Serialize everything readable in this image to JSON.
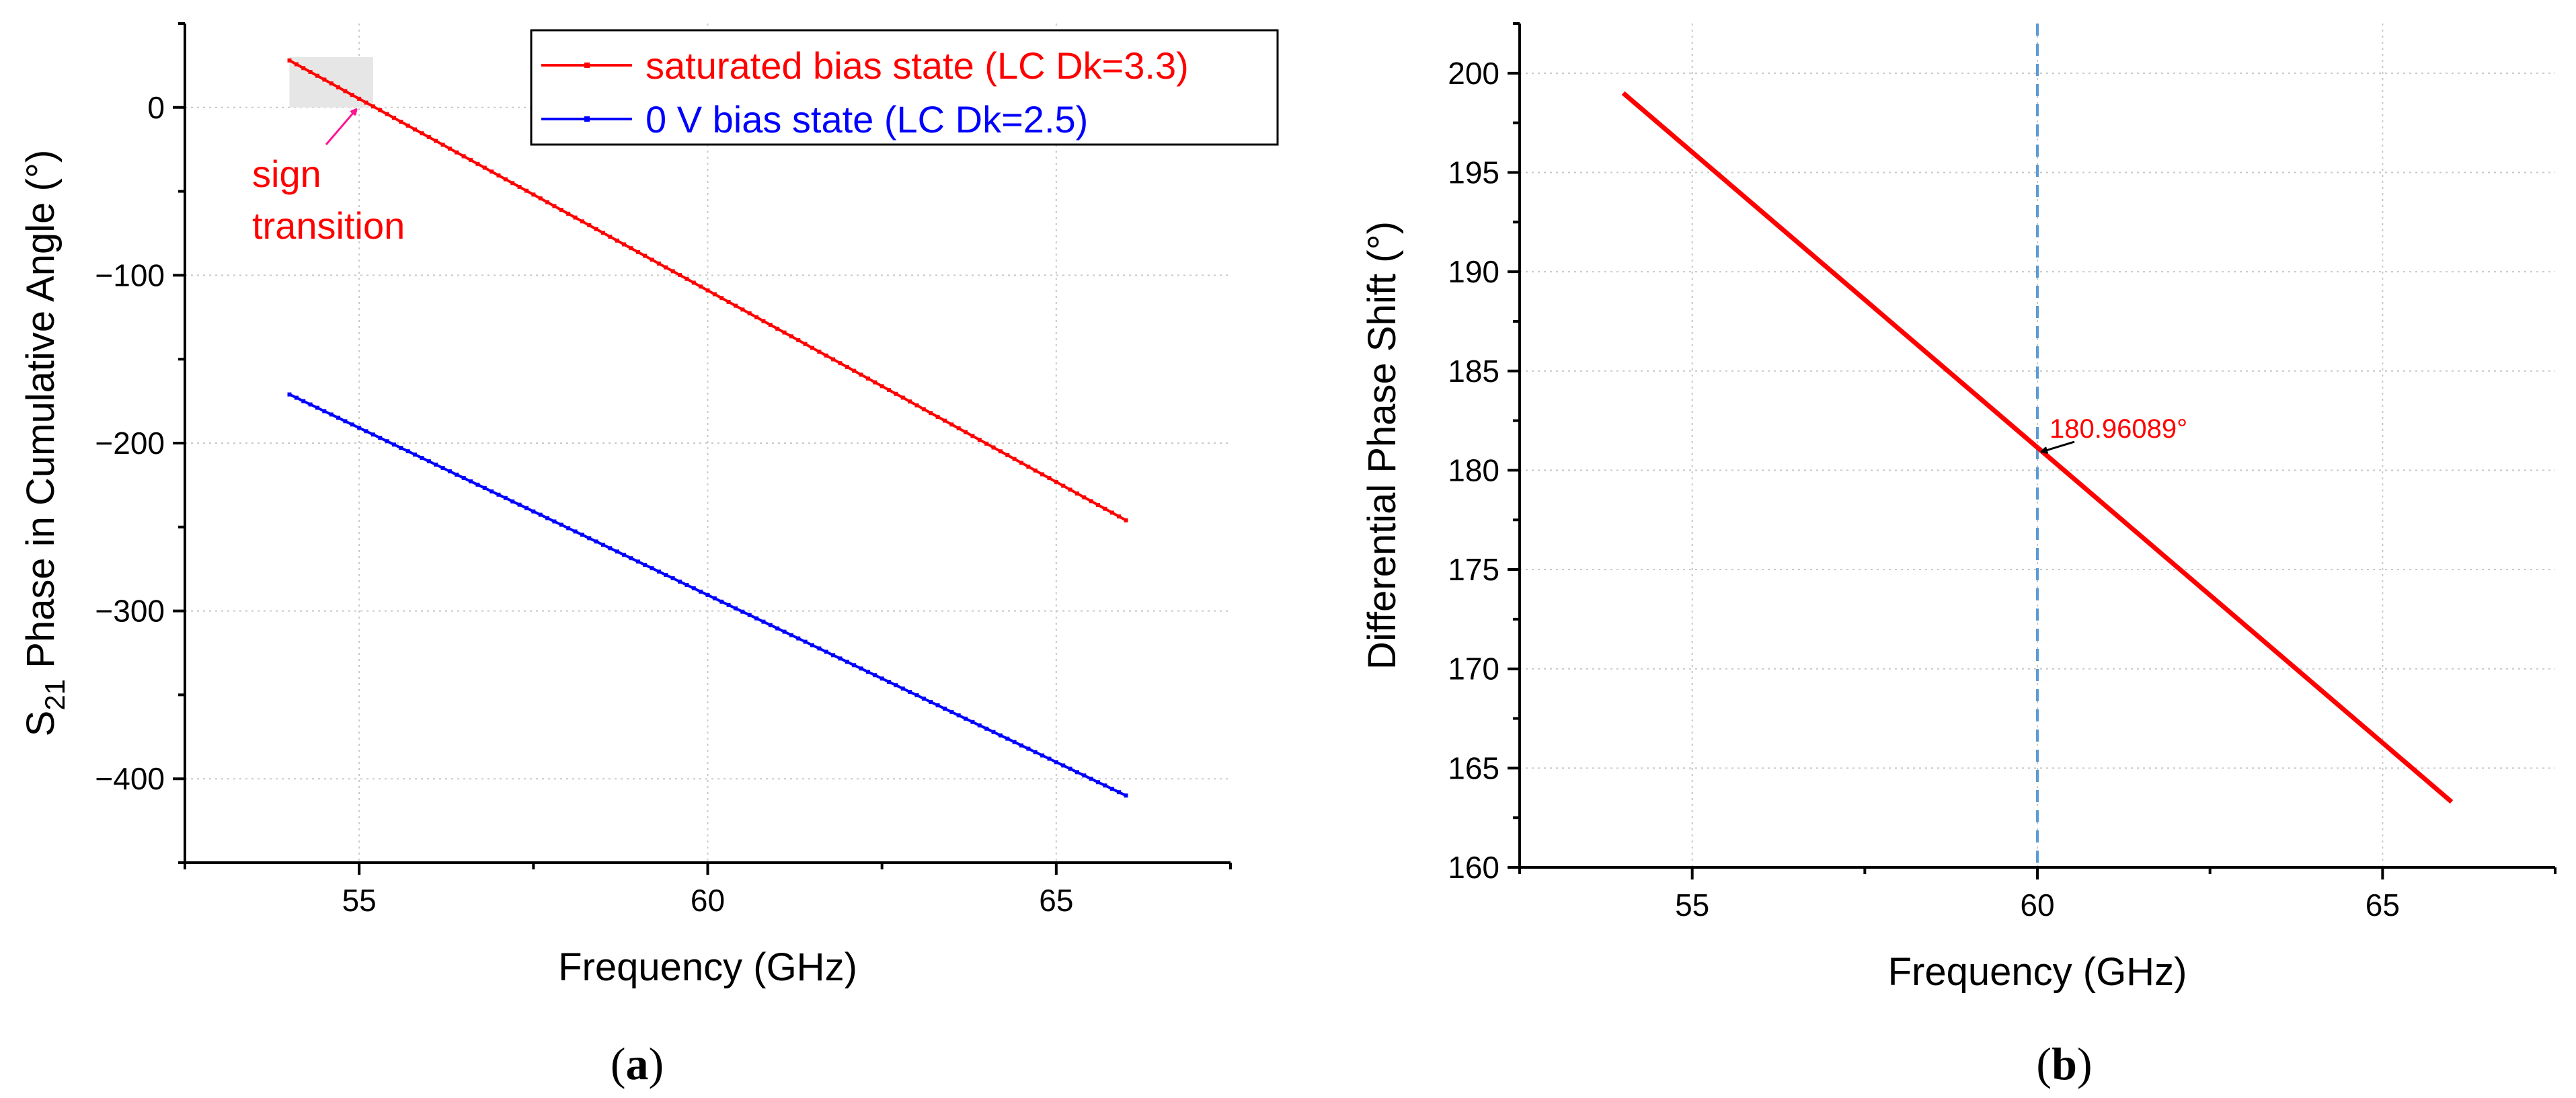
{
  "colors": {
    "series_red": "#ff0000",
    "series_blue": "#0000ff",
    "marker_line": "#5b9bd5",
    "grid": "#c8c8c8",
    "highlight": "#e6e6e6",
    "arrow_pink": "#ff1493"
  },
  "chart_data": [
    {
      "panel": "(a)",
      "panel_letter": "a",
      "type": "line",
      "xlabel": "Frequency (GHz)",
      "ylabel_main": "S",
      "ylabel_sub": "21",
      "ylabel_rest": " Phase in Cumulative Angle (°)",
      "xlim": [
        52.5,
        67.5
      ],
      "ylim": [
        -450,
        50
      ],
      "xticks": [
        55,
        60,
        65
      ],
      "yticks": [
        0,
        -100,
        -200,
        -300,
        -400
      ],
      "ytick_labels": [
        "0",
        "−100",
        "−200",
        "−300",
        "−400"
      ],
      "x_minor_step": 2.5,
      "y_minor_step": 50,
      "legend": {
        "position": "top-right"
      },
      "series": [
        {
          "name": "saturated bias state (LC Dk=3.3)",
          "color": "#ff0000",
          "x": [
            54,
            66
          ],
          "y": [
            28,
            -246
          ]
        },
        {
          "name": "0 V bias state (LC Dk=2.5)",
          "color": "#0000ff",
          "x": [
            54,
            66
          ],
          "y": [
            -171,
            -410
          ]
        }
      ],
      "highlight_region": {
        "x": [
          54,
          55.2
        ],
        "y": [
          0,
          30
        ]
      },
      "annotation": {
        "text_line1": "sign",
        "text_line2": "transition",
        "arrow_to": [
          55.0,
          3
        ]
      }
    },
    {
      "panel": "(b)",
      "panel_letter": "b",
      "type": "line",
      "xlabel": "Frequency (GHz)",
      "ylabel": "Differential Phase Shift (°)",
      "xlim": [
        52.5,
        67.5
      ],
      "ylim": [
        160,
        202.5
      ],
      "xticks": [
        55,
        60,
        65
      ],
      "yticks": [
        160,
        165,
        170,
        175,
        180,
        185,
        190,
        195,
        200
      ],
      "ytick_labels": [
        "160",
        "165",
        "170",
        "175",
        "180",
        "185",
        "190",
        "195",
        "200"
      ],
      "x_minor_step": 2.5,
      "y_minor_step": 2.5,
      "series": [
        {
          "name": "differential phase shift",
          "color": "#ff0000",
          "x": [
            54,
            66
          ],
          "y": [
            199,
            163.3
          ]
        }
      ],
      "vline_x": 60,
      "callout": {
        "text": "180.96089°",
        "x": 60,
        "y": 180.96089
      }
    }
  ]
}
